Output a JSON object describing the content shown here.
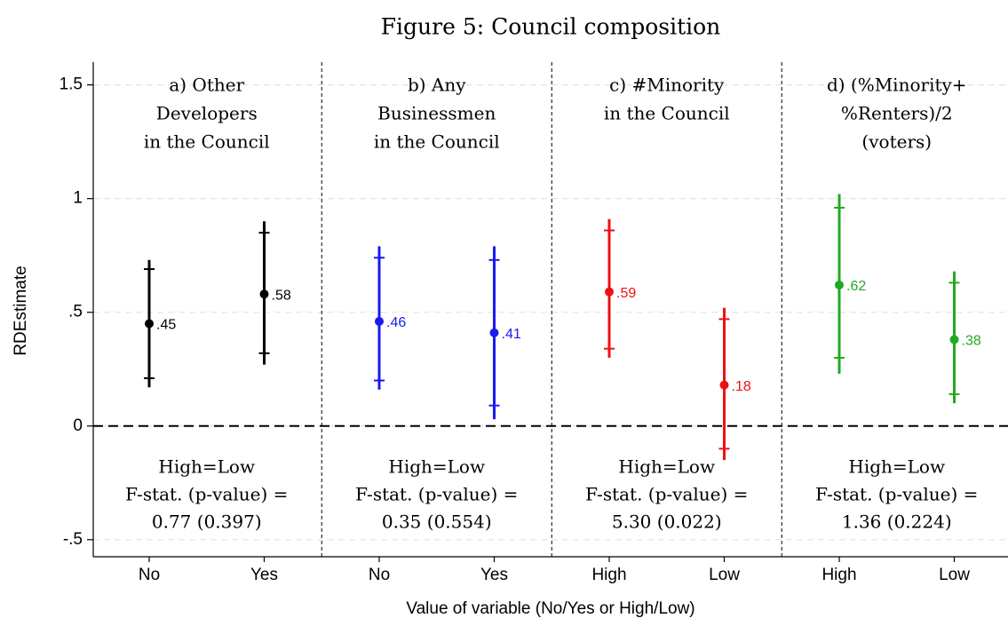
{
  "chart_data": {
    "type": "errorbar",
    "title": "Figure 5: Council composition",
    "x_label": "Value of variable (No/Yes or High/Low)",
    "y_label": "RDEstimate",
    "ylim": [
      -0.575,
      1.6
    ],
    "yticks": [
      1.5,
      1,
      {
        "value": 0.5,
        "label": ".5"
      },
      0,
      {
        "value": -0.5,
        "label": "-.5"
      }
    ],
    "grid": true,
    "hline": 0,
    "panels": [
      {
        "title": [
          "a) Other",
          "Developers",
          "in the Council"
        ],
        "color": "#000000",
        "categories": [
          "No",
          "Yes"
        ],
        "values": [
          0.45,
          0.58
        ],
        "value_labels": [
          ".45",
          ".58"
        ],
        "ci95": [
          [
            0.17,
            0.73
          ],
          [
            0.27,
            0.9
          ]
        ],
        "ci90": [
          [
            0.21,
            0.69
          ],
          [
            0.32,
            0.85
          ]
        ],
        "annotation": [
          "High=Low",
          "F-stat. (p-value) =",
          "0.77 (0.397)"
        ]
      },
      {
        "title": [
          "b) Any",
          "Businessmen",
          "in the Council"
        ],
        "color": "#1a1aee",
        "categories": [
          "No",
          "Yes"
        ],
        "values": [
          0.46,
          0.41
        ],
        "value_labels": [
          ".46",
          ".41"
        ],
        "ci95": [
          [
            0.16,
            0.79
          ],
          [
            0.03,
            0.79
          ]
        ],
        "ci90": [
          [
            0.2,
            0.74
          ],
          [
            0.09,
            0.73
          ]
        ],
        "annotation": [
          "High=Low",
          "F-stat. (p-value) =",
          "0.35 (0.554)"
        ]
      },
      {
        "title": [
          "c) #Minority",
          "in the Council"
        ],
        "color": "#ee1111",
        "categories": [
          "High",
          "Low"
        ],
        "values": [
          0.59,
          0.18
        ],
        "value_labels": [
          ".59",
          ".18"
        ],
        "ci95": [
          [
            0.3,
            0.91
          ],
          [
            -0.15,
            0.52
          ]
        ],
        "ci90": [
          [
            0.34,
            0.86
          ],
          [
            -0.1,
            0.47
          ]
        ],
        "annotation": [
          "High=Low",
          "F-stat. (p-value) =",
          "5.30 (0.022)"
        ]
      },
      {
        "title": [
          "d) (%Minority+",
          "%Renters)/2",
          "(voters)"
        ],
        "color": "#22aa22",
        "categories": [
          "High",
          "Low"
        ],
        "values": [
          0.62,
          0.38
        ],
        "value_labels": [
          ".62",
          ".38"
        ],
        "ci95": [
          [
            0.23,
            1.02
          ],
          [
            0.1,
            0.68
          ]
        ],
        "ci90": [
          [
            0.3,
            0.96
          ],
          [
            0.14,
            0.63
          ]
        ],
        "annotation": [
          "High=Low",
          "F-stat. (p-value) =",
          "1.36 (0.224)"
        ]
      }
    ]
  }
}
